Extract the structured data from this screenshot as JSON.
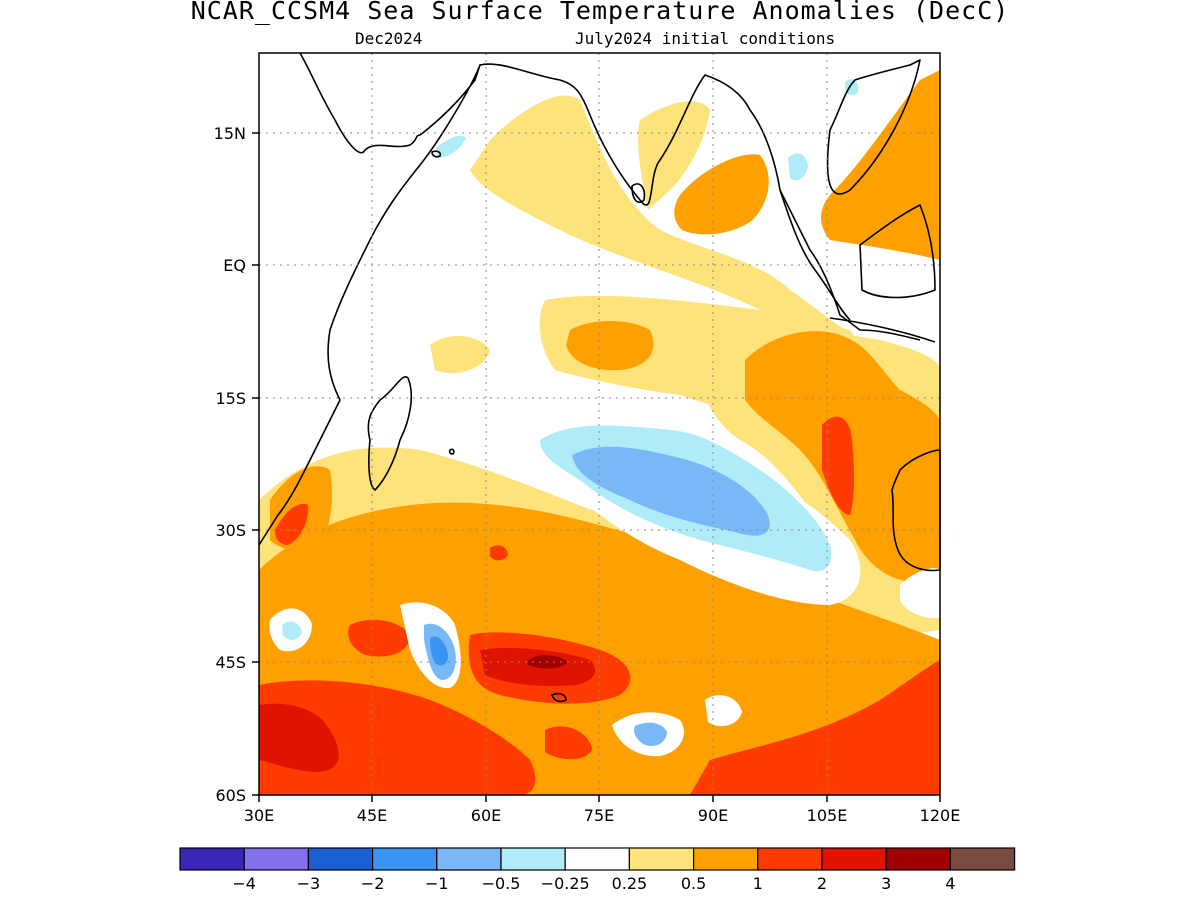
{
  "header": {
    "title": "NCAR_CCSM4 Sea Surface Temperature Anomalies (DecC)",
    "valid_month": "Dec2024",
    "init_label": "July2024 initial conditions"
  },
  "map": {
    "lon_range": [
      30,
      120
    ],
    "lat_range": [
      -60,
      24
    ],
    "lon_ticks": [
      "30E",
      "45E",
      "60E",
      "75E",
      "90E",
      "105E",
      "120E"
    ],
    "lat_ticks": [
      "15N",
      "EQ",
      "15S",
      "30S",
      "45S",
      "60S"
    ],
    "grid": "dotted"
  },
  "colorbar": {
    "colors": [
      "#3a26b8",
      "#8270ec",
      "#1a5ed4",
      "#3a94f4",
      "#78b8f6",
      "#b0ecf8",
      "#ffffff",
      "#fee27a",
      "#fea000",
      "#ff3b00",
      "#e01200",
      "#a00000",
      "#7a4a3e"
    ],
    "labels": [
      "−4",
      "−3",
      "−2",
      "−1",
      "−0.5",
      "−0.25",
      "0.25",
      "0.5",
      "1",
      "2",
      "3",
      "4"
    ]
  }
}
